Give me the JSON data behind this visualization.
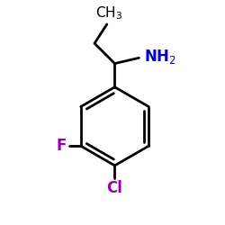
{
  "background_color": "#ffffff",
  "bond_color": "#000000",
  "NH2_color": "#0000cc",
  "F_color": "#9900aa",
  "Cl_color": "#9900aa",
  "CH3_color": "#000000",
  "line_width": 2.0,
  "font_size_labels": 12,
  "font_size_CH3": 11
}
